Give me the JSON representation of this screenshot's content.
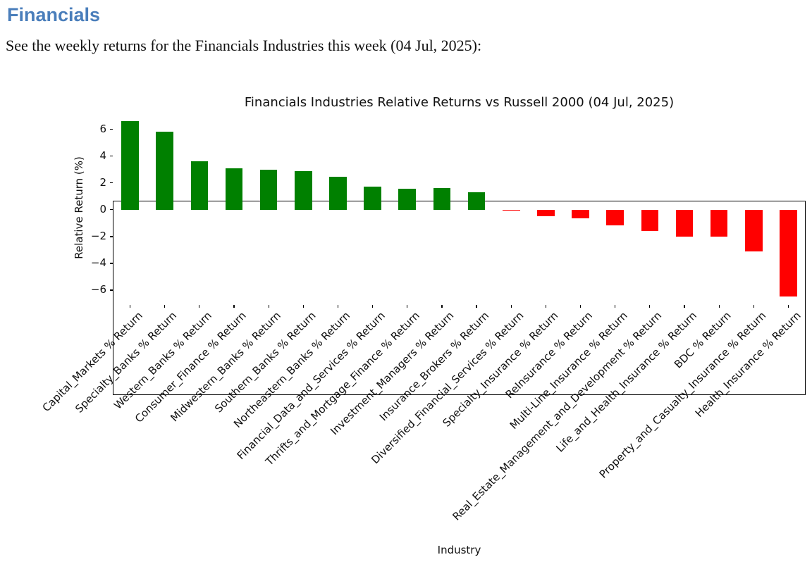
{
  "header": {
    "title": "Financials",
    "subtitle": "See the weekly returns for the Financials Industries this week (04 Jul, 2025):"
  },
  "colors": {
    "heading": "#4a7ebb",
    "positive_bar": "#008000",
    "negative_bar": "#ff0000"
  },
  "chart_data": {
    "type": "bar",
    "title": "Financials Industries Relative Returns vs Russell 2000 (04 Jul, 2025)",
    "xlabel": "Industry",
    "ylabel": "Relative Return (%)",
    "ylim": [
      -7.1,
      7.4
    ],
    "yticks": [
      -6,
      -4,
      -2,
      0,
      2,
      4,
      6
    ],
    "grid": false,
    "legend": "none",
    "bar_width_fraction": 0.5,
    "categories": [
      "Capital_Markets % Return",
      "Specialty_Banks % Return",
      "Western_Banks % Return",
      "Consumer_Finance % Return",
      "Midwestern_Banks % Return",
      "Southern_Banks % Return",
      "Northeastern_Banks % Return",
      "Financial_Data_and_Services % Return",
      "Thrifts_and_Mortgage_Finance % Return",
      "Investment_Managers % Return",
      "Insurance_Brokers % Return",
      "Diversified_Financial_Services % Return",
      "Specialty_Insurance % Return",
      "ReInsurance % Return",
      "Multi-Line_Insurance % Return",
      "Real_Estate_Management_and_Development % Return",
      "Life_and_Health_Insurance % Return",
      "BDC % Return",
      "Property_and_Casualty_Insurance % Return",
      "Health_Insurance % Return"
    ],
    "values": [
      6.6,
      5.8,
      3.6,
      3.1,
      3.0,
      2.9,
      2.45,
      1.7,
      1.55,
      1.6,
      1.3,
      -0.07,
      -0.5,
      -0.65,
      -1.15,
      -1.6,
      -2.0,
      -2.0,
      -3.1,
      -6.45
    ]
  }
}
